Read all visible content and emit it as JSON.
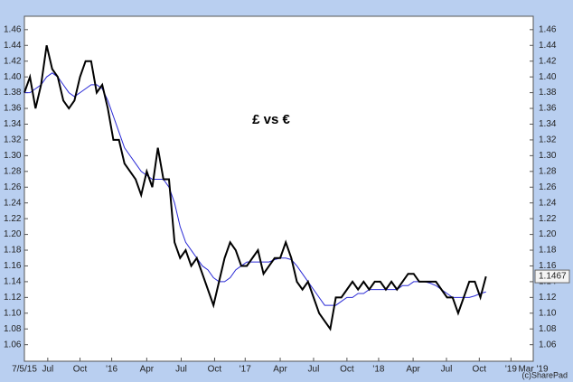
{
  "chart_data": {
    "type": "line",
    "title": "£ vs €",
    "credit": "(c)SharePad",
    "last_value_label": "1.1467",
    "xlim": [
      0,
      91.5
    ],
    "ylim": [
      1.039,
      1.477
    ],
    "xticks": [
      {
        "value": 0,
        "label": "7/5/15"
      },
      {
        "value": 4.2,
        "label": "Jul"
      },
      {
        "value": 10,
        "label": "Oct"
      },
      {
        "value": 15.7,
        "label": "'16"
      },
      {
        "value": 22,
        "label": "Apr"
      },
      {
        "value": 28.2,
        "label": "Jul"
      },
      {
        "value": 34.2,
        "label": "Oct"
      },
      {
        "value": 39.7,
        "label": "'17"
      },
      {
        "value": 46,
        "label": "Apr"
      },
      {
        "value": 52,
        "label": "Jul"
      },
      {
        "value": 58,
        "label": "Oct"
      },
      {
        "value": 63.7,
        "label": "'18"
      },
      {
        "value": 69.9,
        "label": "Apr"
      },
      {
        "value": 75.9,
        "label": "Jul"
      },
      {
        "value": 81.8,
        "label": "Oct"
      },
      {
        "value": 87.5,
        "label": "'19"
      },
      {
        "value": 91.5,
        "label": "Mar '19"
      }
    ],
    "yticks": [
      1.06,
      1.08,
      {
        "value": 1.1,
        "label": "1.10"
      },
      1.12,
      1.14,
      1.16,
      1.18,
      {
        "value": 1.2,
        "label": "1.20"
      },
      1.22,
      1.24,
      1.26,
      1.28,
      {
        "value": 1.3,
        "label": "1.30"
      },
      1.32,
      1.34,
      1.36,
      1.38,
      {
        "value": 1.4,
        "label": "1.40"
      },
      1.42,
      1.44,
      1.46
    ],
    "series": [
      {
        "color": "#000000",
        "values": [
          1.38,
          1.4,
          1.36,
          1.39,
          1.44,
          1.41,
          1.4,
          1.37,
          1.36,
          1.37,
          1.4,
          1.42,
          1.42,
          1.38,
          1.39,
          1.36,
          1.32,
          1.32,
          1.29,
          1.28,
          1.27,
          1.25,
          1.28,
          1.26,
          1.31,
          1.27,
          1.27,
          1.19,
          1.17,
          1.18,
          1.16,
          1.17,
          1.15,
          1.13,
          1.11,
          1.14,
          1.17,
          1.19,
          1.18,
          1.16,
          1.16,
          1.17,
          1.18,
          1.15,
          1.16,
          1.17,
          1.17,
          1.19,
          1.17,
          1.14,
          1.13,
          1.14,
          1.12,
          1.1,
          1.09,
          1.08,
          1.12,
          1.12,
          1.13,
          1.14,
          1.13,
          1.14,
          1.13,
          1.14,
          1.14,
          1.13,
          1.14,
          1.13,
          1.14,
          1.15,
          1.15,
          1.14,
          1.14,
          1.14,
          1.14,
          1.13,
          1.12,
          1.12,
          1.1,
          1.12,
          1.14,
          1.14,
          1.12,
          1.1467
        ]
      },
      {
        "color": "#2a2ad6",
        "values": [
          1.38,
          1.38,
          1.385,
          1.39,
          1.4,
          1.405,
          1.4,
          1.39,
          1.38,
          1.375,
          1.38,
          1.385,
          1.39,
          1.39,
          1.385,
          1.37,
          1.35,
          1.33,
          1.31,
          1.3,
          1.29,
          1.28,
          1.275,
          1.27,
          1.27,
          1.27,
          1.26,
          1.24,
          1.21,
          1.19,
          1.18,
          1.17,
          1.16,
          1.155,
          1.145,
          1.14,
          1.14,
          1.145,
          1.155,
          1.16,
          1.165,
          1.165,
          1.165,
          1.165,
          1.165,
          1.168,
          1.17,
          1.17,
          1.168,
          1.16,
          1.15,
          1.14,
          1.13,
          1.12,
          1.11,
          1.11,
          1.11,
          1.115,
          1.12,
          1.12,
          1.125,
          1.125,
          1.13,
          1.13,
          1.13,
          1.13,
          1.13,
          1.13,
          1.135,
          1.135,
          1.14,
          1.14,
          1.14,
          1.138,
          1.135,
          1.13,
          1.125,
          1.12,
          1.12,
          1.12,
          1.12,
          1.122,
          1.125,
          1.127
        ]
      }
    ]
  }
}
